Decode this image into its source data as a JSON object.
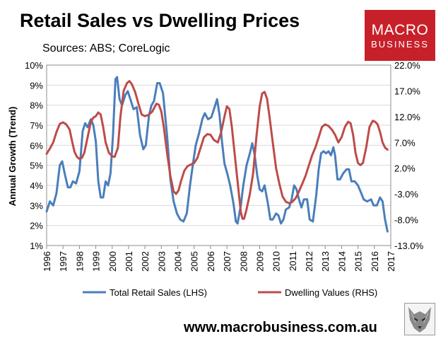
{
  "header": {
    "title": "Retail Sales vs Dwelling Prices",
    "subtitle": "Sources: ABS; CoreLogic"
  },
  "logo": {
    "line1": "MACRO",
    "line2": "BUSINESS"
  },
  "footer": {
    "website": "www.macrobusiness.com.au"
  },
  "colors": {
    "retail": "#4a7ebb",
    "dwelling": "#be4b48",
    "logo_bg": "#c8202a",
    "grid": "#d9d9d9"
  },
  "mascot": {
    "icon": "wolf-logo-icon"
  },
  "chart_data": {
    "type": "line",
    "title": "Retail Sales vs Dwelling Prices",
    "ylabel": "Annual Growth (Trend)",
    "xlim": [
      1996,
      2017
    ],
    "ylim_left": [
      1,
      10
    ],
    "ylim_right": [
      -13,
      22
    ],
    "left_ticks": [
      "1%",
      "2%",
      "3%",
      "4%",
      "5%",
      "6%",
      "7%",
      "8%",
      "9%",
      "10%"
    ],
    "right_ticks": [
      "-13.0%",
      "-8.0%",
      "-3.0%",
      "2.0%",
      "7.0%",
      "12.0%",
      "17.0%",
      "22.0%"
    ],
    "x_ticks": [
      "1996",
      "1997",
      "1998",
      "1999",
      "2000",
      "2001",
      "2002",
      "2003",
      "2004",
      "2005",
      "2006",
      "2007",
      "2008",
      "2009",
      "2010",
      "2011",
      "2012",
      "2013",
      "2014",
      "2015",
      "2016",
      "2017"
    ],
    "legend_position": "bottom",
    "series": [
      {
        "name": "Total Retail Sales (LHS)",
        "axis": "left",
        "points": [
          [
            1996.0,
            2.7
          ],
          [
            1996.2,
            3.2
          ],
          [
            1996.4,
            3.0
          ],
          [
            1996.6,
            3.6
          ],
          [
            1996.8,
            5.0
          ],
          [
            1996.95,
            5.2
          ],
          [
            1997.1,
            4.6
          ],
          [
            1997.3,
            3.9
          ],
          [
            1997.45,
            3.9
          ],
          [
            1997.6,
            4.2
          ],
          [
            1997.8,
            4.1
          ],
          [
            1998.0,
            4.7
          ],
          [
            1998.2,
            6.7
          ],
          [
            1998.35,
            7.1
          ],
          [
            1998.5,
            6.9
          ],
          [
            1998.7,
            7.3
          ],
          [
            1998.85,
            7.0
          ],
          [
            1999.0,
            6.2
          ],
          [
            1999.15,
            4.2
          ],
          [
            1999.3,
            3.4
          ],
          [
            1999.45,
            3.4
          ],
          [
            1999.6,
            4.2
          ],
          [
            1999.75,
            4.0
          ],
          [
            1999.9,
            4.6
          ],
          [
            2000.05,
            6.5
          ],
          [
            2000.2,
            9.3
          ],
          [
            2000.3,
            9.4
          ],
          [
            2000.45,
            8.3
          ],
          [
            2000.6,
            8.0
          ],
          [
            2000.8,
            8.5
          ],
          [
            2000.95,
            8.7
          ],
          [
            2001.15,
            8.2
          ],
          [
            2001.3,
            7.8
          ],
          [
            2001.5,
            7.9
          ],
          [
            2001.7,
            6.5
          ],
          [
            2001.9,
            5.8
          ],
          [
            2002.05,
            6.0
          ],
          [
            2002.25,
            7.5
          ],
          [
            2002.4,
            8.0
          ],
          [
            2002.55,
            8.2
          ],
          [
            2002.75,
            9.1
          ],
          [
            2002.9,
            9.1
          ],
          [
            2003.1,
            8.6
          ],
          [
            2003.35,
            6.5
          ],
          [
            2003.55,
            4.3
          ],
          [
            2003.75,
            3.2
          ],
          [
            2003.95,
            2.6
          ],
          [
            2004.15,
            2.3
          ],
          [
            2004.35,
            2.2
          ],
          [
            2004.55,
            2.6
          ],
          [
            2004.75,
            4.0
          ],
          [
            2004.95,
            5.2
          ],
          [
            2005.1,
            6.0
          ],
          [
            2005.3,
            6.6
          ],
          [
            2005.5,
            7.3
          ],
          [
            2005.65,
            7.6
          ],
          [
            2005.85,
            7.3
          ],
          [
            2006.05,
            7.4
          ],
          [
            2006.25,
            7.9
          ],
          [
            2006.4,
            8.3
          ],
          [
            2006.55,
            7.5
          ],
          [
            2006.7,
            6.2
          ],
          [
            2006.85,
            5.1
          ],
          [
            2007.05,
            4.5
          ],
          [
            2007.2,
            4.0
          ],
          [
            2007.4,
            3.1
          ],
          [
            2007.55,
            2.2
          ],
          [
            2007.65,
            2.1
          ],
          [
            2007.85,
            3.0
          ],
          [
            2008.0,
            4.0
          ],
          [
            2008.2,
            5.0
          ],
          [
            2008.4,
            5.6
          ],
          [
            2008.55,
            6.1
          ],
          [
            2008.7,
            5.5
          ],
          [
            2008.85,
            4.5
          ],
          [
            2009.0,
            3.8
          ],
          [
            2009.15,
            3.7
          ],
          [
            2009.3,
            4.0
          ],
          [
            2009.5,
            3.1
          ],
          [
            2009.65,
            2.3
          ],
          [
            2009.8,
            2.3
          ],
          [
            2010.0,
            2.6
          ],
          [
            2010.15,
            2.5
          ],
          [
            2010.3,
            2.1
          ],
          [
            2010.45,
            2.3
          ],
          [
            2010.6,
            2.8
          ],
          [
            2010.8,
            2.9
          ],
          [
            2010.95,
            3.3
          ],
          [
            2011.1,
            4.0
          ],
          [
            2011.25,
            3.8
          ],
          [
            2011.4,
            3.3
          ],
          [
            2011.55,
            2.9
          ],
          [
            2011.7,
            3.3
          ],
          [
            2011.9,
            3.3
          ],
          [
            2012.05,
            2.3
          ],
          [
            2012.25,
            2.2
          ],
          [
            2012.45,
            3.5
          ],
          [
            2012.6,
            4.8
          ],
          [
            2012.75,
            5.6
          ],
          [
            2012.9,
            5.7
          ],
          [
            2013.05,
            5.6
          ],
          [
            2013.2,
            5.7
          ],
          [
            2013.35,
            5.5
          ],
          [
            2013.5,
            5.9
          ],
          [
            2013.6,
            5.5
          ],
          [
            2013.75,
            4.3
          ],
          [
            2013.9,
            4.3
          ],
          [
            2014.1,
            4.6
          ],
          [
            2014.3,
            4.8
          ],
          [
            2014.45,
            4.8
          ],
          [
            2014.6,
            4.2
          ],
          [
            2014.8,
            4.2
          ],
          [
            2015.0,
            4.0
          ],
          [
            2015.2,
            3.6
          ],
          [
            2015.35,
            3.3
          ],
          [
            2015.55,
            3.2
          ],
          [
            2015.8,
            3.3
          ],
          [
            2015.95,
            3.0
          ],
          [
            2016.15,
            3.0
          ],
          [
            2016.35,
            3.4
          ],
          [
            2016.5,
            3.2
          ],
          [
            2016.65,
            2.3
          ],
          [
            2016.8,
            1.7
          ]
        ]
      },
      {
        "name": "Dwelling Values (RHS)",
        "axis": "right",
        "points": [
          [
            1996.0,
            4.8
          ],
          [
            1996.2,
            5.8
          ],
          [
            1996.4,
            7.0
          ],
          [
            1996.6,
            9.0
          ],
          [
            1996.8,
            10.6
          ],
          [
            1997.0,
            10.9
          ],
          [
            1997.2,
            10.5
          ],
          [
            1997.4,
            9.5
          ],
          [
            1997.55,
            7.3
          ],
          [
            1997.7,
            5.2
          ],
          [
            1997.85,
            4.2
          ],
          [
            1998.0,
            3.8
          ],
          [
            1998.15,
            4.0
          ],
          [
            1998.3,
            5.0
          ],
          [
            1998.5,
            8.0
          ],
          [
            1998.7,
            11.0
          ],
          [
            1998.85,
            11.8
          ],
          [
            1999.0,
            12.1
          ],
          [
            1999.15,
            12.8
          ],
          [
            1999.3,
            12.4
          ],
          [
            1999.45,
            10.0
          ],
          [
            1999.6,
            7.0
          ],
          [
            1999.8,
            5.0
          ],
          [
            2000.0,
            4.3
          ],
          [
            2000.15,
            4.2
          ],
          [
            2000.35,
            6.0
          ],
          [
            2000.5,
            12.0
          ],
          [
            2000.7,
            17.0
          ],
          [
            2000.9,
            18.5
          ],
          [
            2001.05,
            18.9
          ],
          [
            2001.2,
            18.3
          ],
          [
            2001.4,
            16.8
          ],
          [
            2001.6,
            14.5
          ],
          [
            2001.8,
            12.4
          ],
          [
            2002.0,
            12.1
          ],
          [
            2002.2,
            12.3
          ],
          [
            2002.45,
            13.0
          ],
          [
            2002.7,
            14.5
          ],
          [
            2002.85,
            14.3
          ],
          [
            2003.0,
            13.0
          ],
          [
            2003.15,
            10.0
          ],
          [
            2003.35,
            5.0
          ],
          [
            2003.55,
            0.5
          ],
          [
            2003.75,
            -2.5
          ],
          [
            2003.9,
            -3.0
          ],
          [
            2004.05,
            -2.3
          ],
          [
            2004.2,
            -0.5
          ],
          [
            2004.4,
            1.5
          ],
          [
            2004.6,
            2.4
          ],
          [
            2004.8,
            2.7
          ],
          [
            2005.0,
            3.0
          ],
          [
            2005.2,
            4.0
          ],
          [
            2005.4,
            6.0
          ],
          [
            2005.6,
            8.0
          ],
          [
            2005.8,
            8.6
          ],
          [
            2006.0,
            8.5
          ],
          [
            2006.2,
            7.5
          ],
          [
            2006.45,
            7.0
          ],
          [
            2006.65,
            9.0
          ],
          [
            2006.85,
            12.0
          ],
          [
            2007.0,
            14.0
          ],
          [
            2007.15,
            13.5
          ],
          [
            2007.3,
            10.0
          ],
          [
            2007.5,
            4.0
          ],
          [
            2007.7,
            -2.0
          ],
          [
            2007.85,
            -6.5
          ],
          [
            2007.95,
            -7.8
          ],
          [
            2008.05,
            -7.8
          ],
          [
            2008.2,
            -6.0
          ],
          [
            2008.4,
            -3.0
          ],
          [
            2008.6,
            1.0
          ],
          [
            2008.8,
            8.0
          ],
          [
            2009.0,
            14.0
          ],
          [
            2009.15,
            16.5
          ],
          [
            2009.3,
            16.8
          ],
          [
            2009.45,
            15.5
          ],
          [
            2009.6,
            12.0
          ],
          [
            2009.8,
            7.0
          ],
          [
            2010.0,
            2.0
          ],
          [
            2010.2,
            -1.0
          ],
          [
            2010.4,
            -3.5
          ],
          [
            2010.6,
            -4.5
          ],
          [
            2010.8,
            -4.8
          ],
          [
            2011.0,
            -4.5
          ],
          [
            2011.2,
            -3.8
          ],
          [
            2011.4,
            -2.5
          ],
          [
            2011.6,
            -1.0
          ],
          [
            2011.8,
            0.5
          ],
          [
            2012.0,
            2.5
          ],
          [
            2012.2,
            4.5
          ],
          [
            2012.4,
            6.0
          ],
          [
            2012.6,
            8.0
          ],
          [
            2012.8,
            10.0
          ],
          [
            2013.0,
            10.5
          ],
          [
            2013.2,
            10.2
          ],
          [
            2013.4,
            9.5
          ],
          [
            2013.6,
            8.5
          ],
          [
            2013.8,
            7.0
          ],
          [
            2014.0,
            8.0
          ],
          [
            2014.2,
            10.0
          ],
          [
            2014.4,
            11.0
          ],
          [
            2014.55,
            10.7
          ],
          [
            2014.7,
            8.5
          ],
          [
            2014.85,
            5.0
          ],
          [
            2015.0,
            3.0
          ],
          [
            2015.15,
            2.6
          ],
          [
            2015.3,
            3.0
          ],
          [
            2015.5,
            6.0
          ],
          [
            2015.7,
            10.0
          ],
          [
            2015.9,
            11.2
          ],
          [
            2016.05,
            11.0
          ],
          [
            2016.2,
            10.5
          ],
          [
            2016.35,
            9.0
          ],
          [
            2016.5,
            7.0
          ],
          [
            2016.65,
            6.0
          ],
          [
            2016.8,
            5.6
          ]
        ]
      }
    ]
  }
}
